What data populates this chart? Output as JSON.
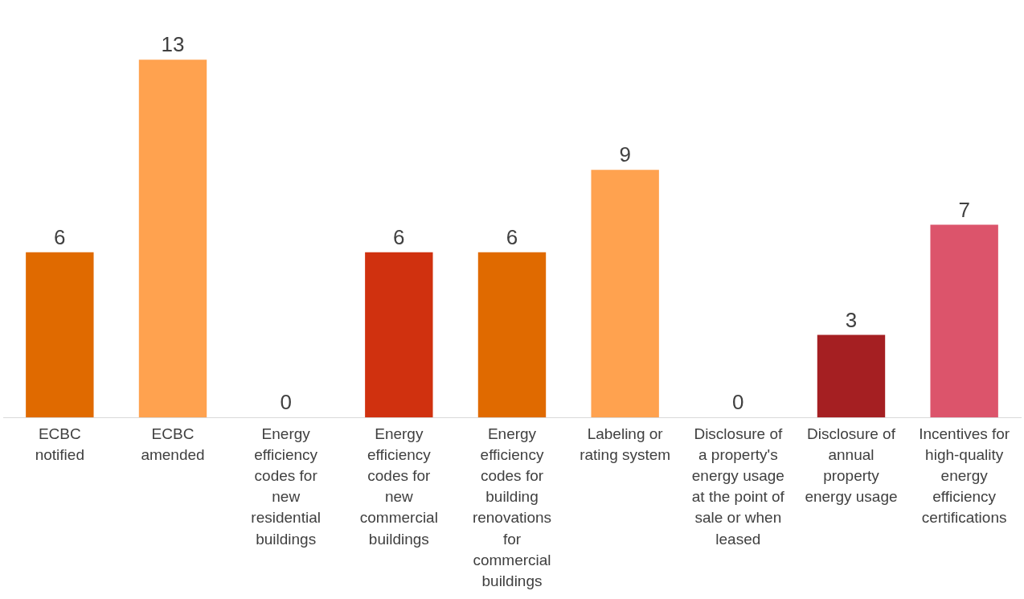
{
  "chart_data": {
    "type": "bar",
    "categories": [
      "ECBC notified",
      "ECBC amended",
      "Energy efficiency codes for new residential buildings",
      "Energy efficiency codes for new commercial buildings",
      "Energy efficiency codes for building renovations for commercial buildings",
      "Labeling or rating system",
      "Disclosure of a property's energy usage at the point of sale or when leased",
      "Disclosure of annual property energy usage",
      "Incentives for high-quality energy efficiency certifications"
    ],
    "values": [
      6,
      13,
      0,
      6,
      6,
      9,
      0,
      3,
      7
    ],
    "colors": [
      "#e06a00",
      "#ffa24f",
      "#e06a00",
      "#d0310f",
      "#e06a00",
      "#ffa24f",
      "#e06a00",
      "#a51f22",
      "#dc546b"
    ],
    "data_labels": true,
    "grid": false,
    "legend": false
  }
}
